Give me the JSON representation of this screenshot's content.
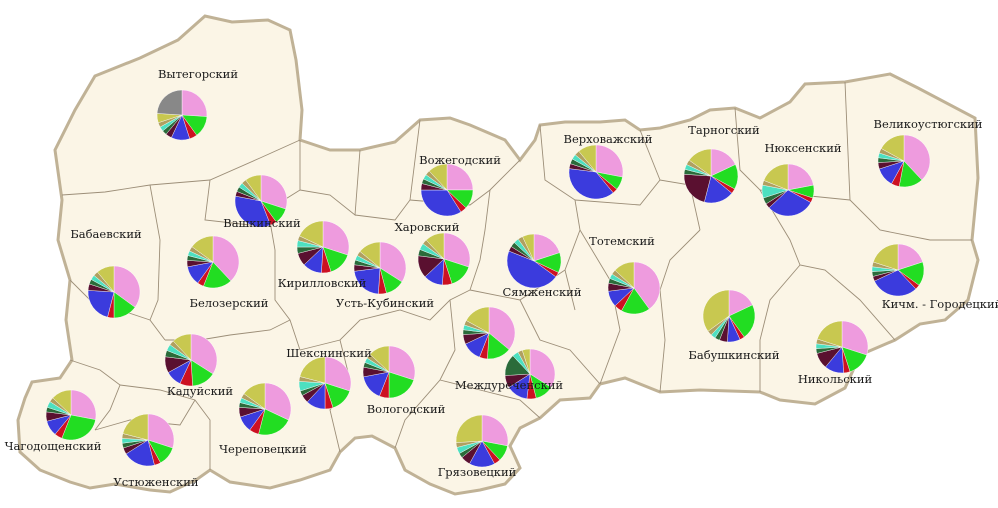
{
  "colors": {
    "background": "#fbf5e6",
    "border": "#b9a98f",
    "palette": [
      "#ee9bde",
      "#22dd22",
      "#cc1122",
      "#3b3bdd",
      "#5a1030",
      "#2b6b3a",
      "#4de0c0",
      "#b0a060",
      "#c8c850",
      "#888888"
    ]
  },
  "districts": [
    {
      "key": "vytegorsky",
      "label": "Вытегорский",
      "shares": [
        26,
        14,
        5,
        12,
        4,
        3,
        3,
        3,
        6,
        24
      ]
    },
    {
      "key": "vashkinsky",
      "label": "Вашкинский",
      "shares": [
        30,
        10,
        4,
        34,
        3,
        3,
        3,
        3,
        10,
        0
      ]
    },
    {
      "key": "vozhegodsky",
      "label": "Вожегодский",
      "shares": [
        25,
        12,
        4,
        34,
        4,
        3,
        3,
        3,
        12,
        0
      ]
    },
    {
      "key": "verkhovazhsky",
      "label": "Верховажский",
      "shares": [
        28,
        8,
        3,
        38,
        3,
        3,
        3,
        3,
        11,
        0
      ]
    },
    {
      "key": "tarnogsky",
      "label": "Тарногский",
      "shares": [
        18,
        15,
        3,
        18,
        22,
        3,
        3,
        3,
        15,
        0
      ]
    },
    {
      "key": "nyuksensky",
      "label": "Нюксенский",
      "shares": [
        22,
        8,
        3,
        30,
        3,
        4,
        8,
        3,
        19,
        0
      ]
    },
    {
      "key": "velikoustyugsky",
      "label": "Великоустюгский",
      "shares": [
        38,
        15,
        5,
        12,
        4,
        3,
        3,
        3,
        17,
        0
      ]
    },
    {
      "key": "babaevsky",
      "label": "Бабаевский",
      "shares": [
        35,
        15,
        4,
        22,
        4,
        3,
        3,
        3,
        11,
        0
      ]
    },
    {
      "key": "belozersky",
      "label": "Белозерский",
      "shares": [
        38,
        18,
        4,
        12,
        4,
        3,
        3,
        3,
        15,
        0
      ]
    },
    {
      "key": "kirillovsky",
      "label": "Кирилловский",
      "shares": [
        30,
        15,
        6,
        12,
        8,
        4,
        4,
        3,
        18,
        0
      ]
    },
    {
      "key": "kharovsky",
      "label": "Харовский",
      "shares": [
        30,
        15,
        6,
        12,
        14,
        4,
        4,
        3,
        12,
        0
      ]
    },
    {
      "key": "ust_kubinsky",
      "label": "Усть-Кубинский",
      "shares": [
        34,
        12,
        5,
        22,
        4,
        3,
        3,
        3,
        14,
        0
      ]
    },
    {
      "key": "syamzhensky",
      "label": "Сямженский",
      "shares": [
        20,
        12,
        3,
        46,
        3,
        3,
        3,
        3,
        7,
        0
      ]
    },
    {
      "key": "totemsky",
      "label": "Тотемский",
      "shares": [
        40,
        18,
        5,
        10,
        5,
        3,
        3,
        3,
        13,
        0
      ]
    },
    {
      "key": "kich_gorodetsky",
      "label": "Кичм. - Городецкий",
      "shares": [
        20,
        15,
        3,
        30,
        3,
        3,
        3,
        3,
        20,
        0
      ]
    },
    {
      "key": "kaduysky",
      "label": "Кадуйский",
      "shares": [
        34,
        15,
        8,
        10,
        10,
        4,
        4,
        3,
        12,
        0
      ]
    },
    {
      "key": "babushkinsky",
      "label": "Бабушкинский",
      "shares": [
        18,
        22,
        3,
        8,
        5,
        3,
        3,
        3,
        35,
        0
      ]
    },
    {
      "key": "nikolsky",
      "label": "Никольский",
      "shares": [
        30,
        15,
        4,
        12,
        10,
        3,
        3,
        3,
        20,
        0
      ]
    },
    {
      "key": "sheksninsky",
      "label": "Шекснинский",
      "shares": [
        30,
        15,
        5,
        12,
        5,
        3,
        6,
        3,
        21,
        0
      ]
    },
    {
      "key": "vologodsky",
      "label": "Вологодский",
      "shares": [
        30,
        20,
        6,
        16,
        6,
        3,
        3,
        3,
        13,
        0
      ]
    },
    {
      "key": "mezhdurechensky",
      "label": "Междуреченский",
      "shares": [
        34,
        12,
        6,
        14,
        8,
        14,
        4,
        3,
        5,
        0
      ]
    },
    {
      "key": "gryazovetsky",
      "label": "Грязовецкий",
      "shares": [
        28,
        10,
        4,
        16,
        6,
        3,
        4,
        3,
        26,
        0
      ]
    },
    {
      "key": "sokolsky",
      "label": "",
      "shares": [
        36,
        15,
        5,
        12,
        6,
        3,
        3,
        3,
        17,
        0
      ]
    },
    {
      "key": "chagodoshchensky",
      "label": "Чагодощенский",
      "shares": [
        28,
        28,
        5,
        10,
        6,
        3,
        4,
        3,
        13,
        0
      ]
    },
    {
      "key": "ustyuzhensky",
      "label": "Устюженский",
      "shares": [
        30,
        12,
        4,
        20,
        4,
        3,
        3,
        3,
        21,
        0
      ]
    },
    {
      "key": "cherepovetsky",
      "label": "Череповецкий",
      "shares": [
        32,
        22,
        6,
        10,
        6,
        3,
        3,
        3,
        15,
        0
      ]
    }
  ]
}
